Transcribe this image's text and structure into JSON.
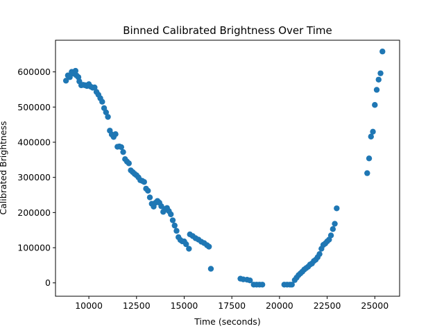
{
  "chart_data": {
    "type": "scatter",
    "title": "Binned Calibrated Brightness Over Time",
    "xlabel": "Time (seconds)",
    "ylabel": "Calibrated Brightness",
    "xlim": [
      8250,
      26300
    ],
    "ylim": [
      -38000,
      690000
    ],
    "xticks": [
      10000,
      12500,
      15000,
      17500,
      20000,
      22500,
      25000
    ],
    "xtick_labels": [
      "10000",
      "12500",
      "15000",
      "17500",
      "20000",
      "22500",
      "25000"
    ],
    "yticks": [
      0,
      100000,
      200000,
      300000,
      400000,
      500000,
      600000
    ],
    "ytick_labels": [
      "0",
      "100000",
      "200000",
      "300000",
      "400000",
      "500000",
      "600000"
    ],
    "grid": false,
    "marker_color": "#1f77b4",
    "points": [
      [
        8800,
        575000
      ],
      [
        8900,
        590000
      ],
      [
        9000,
        585000
      ],
      [
        9100,
        600000
      ],
      [
        9200,
        595000
      ],
      [
        9300,
        603000
      ],
      [
        9350,
        590000
      ],
      [
        9450,
        585000
      ],
      [
        9500,
        573000
      ],
      [
        9600,
        562000
      ],
      [
        9700,
        563000
      ],
      [
        9800,
        562000
      ],
      [
        9900,
        560000
      ],
      [
        10000,
        565000
      ],
      [
        10100,
        558000
      ],
      [
        10200,
        555000
      ],
      [
        10300,
        556000
      ],
      [
        10400,
        543000
      ],
      [
        10500,
        535000
      ],
      [
        10600,
        525000
      ],
      [
        10700,
        515000
      ],
      [
        10800,
        497000
      ],
      [
        10900,
        485000
      ],
      [
        11000,
        472000
      ],
      [
        11100,
        433000
      ],
      [
        11200,
        422000
      ],
      [
        11300,
        415000
      ],
      [
        11400,
        423000
      ],
      [
        11500,
        387000
      ],
      [
        11600,
        388000
      ],
      [
        11700,
        386000
      ],
      [
        11800,
        372000
      ],
      [
        11900,
        352000
      ],
      [
        12000,
        345000
      ],
      [
        12100,
        340000
      ],
      [
        12200,
        320000
      ],
      [
        12300,
        315000
      ],
      [
        12400,
        310000
      ],
      [
        12500,
        306000
      ],
      [
        12600,
        300000
      ],
      [
        12700,
        292000
      ],
      [
        12800,
        290000
      ],
      [
        12900,
        287000
      ],
      [
        13000,
        268000
      ],
      [
        13100,
        262000
      ],
      [
        13200,
        243000
      ],
      [
        13300,
        225000
      ],
      [
        13400,
        217000
      ],
      [
        13500,
        228000
      ],
      [
        13600,
        233000
      ],
      [
        13700,
        228000
      ],
      [
        13800,
        218000
      ],
      [
        13900,
        202000
      ],
      [
        14000,
        210000
      ],
      [
        14100,
        213000
      ],
      [
        14200,
        204000
      ],
      [
        14300,
        195000
      ],
      [
        14400,
        178000
      ],
      [
        14500,
        163000
      ],
      [
        14600,
        148000
      ],
      [
        14700,
        130000
      ],
      [
        14800,
        122000
      ],
      [
        14900,
        118000
      ],
      [
        15000,
        118000
      ],
      [
        15100,
        110000
      ],
      [
        15250,
        97000
      ],
      [
        15300,
        138000
      ],
      [
        15450,
        133000
      ],
      [
        15600,
        127000
      ],
      [
        15750,
        123000
      ],
      [
        15900,
        117000
      ],
      [
        16050,
        113000
      ],
      [
        16200,
        107000
      ],
      [
        16300,
        103000
      ],
      [
        16400,
        40000
      ],
      [
        17950,
        12000
      ],
      [
        18100,
        10000
      ],
      [
        18300,
        9000
      ],
      [
        18450,
        7000
      ],
      [
        18650,
        -5000
      ],
      [
        18800,
        -5000
      ],
      [
        18950,
        -5000
      ],
      [
        19100,
        -5000
      ],
      [
        20250,
        -5000
      ],
      [
        20400,
        -5000
      ],
      [
        20550,
        -5000
      ],
      [
        20650,
        -5000
      ],
      [
        20800,
        8000
      ],
      [
        20900,
        15000
      ],
      [
        21000,
        22000
      ],
      [
        21100,
        27000
      ],
      [
        21200,
        32000
      ],
      [
        21300,
        38000
      ],
      [
        21400,
        42000
      ],
      [
        21500,
        46000
      ],
      [
        21600,
        52000
      ],
      [
        21700,
        55000
      ],
      [
        21800,
        62000
      ],
      [
        21900,
        66000
      ],
      [
        22000,
        73000
      ],
      [
        22100,
        82000
      ],
      [
        22200,
        97000
      ],
      [
        22300,
        108000
      ],
      [
        22400,
        112000
      ],
      [
        22500,
        118000
      ],
      [
        22600,
        123000
      ],
      [
        22700,
        135000
      ],
      [
        22800,
        153000
      ],
      [
        22900,
        168000
      ],
      [
        23000,
        212000
      ],
      [
        24600,
        312000
      ],
      [
        24700,
        354000
      ],
      [
        24800,
        416000
      ],
      [
        24900,
        430000
      ],
      [
        25000,
        506000
      ],
      [
        25100,
        549000
      ],
      [
        25200,
        578000
      ],
      [
        25300,
        596000
      ],
      [
        25400,
        658000
      ]
    ]
  }
}
